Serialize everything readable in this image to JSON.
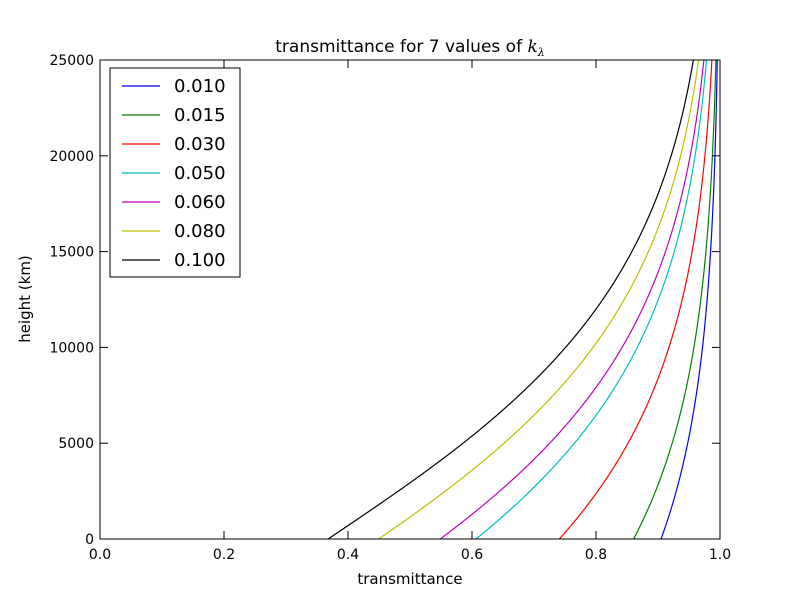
{
  "chart_data": {
    "type": "line",
    "title": "transmittance for 7 values of ",
    "title_math": "k",
    "title_math_sub": "λ",
    "xlabel": "transmittance",
    "ylabel": "height (km)",
    "xlim": [
      0.0,
      1.0
    ],
    "ylim": [
      0,
      25000
    ],
    "xticks": [
      0.0,
      0.2,
      0.4,
      0.6,
      0.8,
      1.0
    ],
    "xtick_labels": [
      "0.0",
      "0.2",
      "0.4",
      "0.6",
      "0.8",
      "1.0"
    ],
    "yticks": [
      0,
      5000,
      10000,
      15000,
      20000,
      25000
    ],
    "ytick_labels": [
      "0",
      "5000",
      "10000",
      "15000",
      "20000",
      "25000"
    ],
    "grid": false,
    "legend_position": "top-left",
    "series": [
      {
        "name": "0.010",
        "color": "#0000ff",
        "k": 0.01
      },
      {
        "name": "0.015",
        "color": "#008000",
        "k": 0.015
      },
      {
        "name": "0.030",
        "color": "#ff0000",
        "k": 0.03
      },
      {
        "name": "0.050",
        "color": "#00bfbf",
        "k": 0.05
      },
      {
        "name": "0.060",
        "color": "#bf00bf",
        "k": 0.06
      },
      {
        "name": "0.080",
        "color": "#bfbf00",
        "k": 0.08
      },
      {
        "name": "0.100",
        "color": "#000000",
        "k": 0.1
      }
    ]
  }
}
